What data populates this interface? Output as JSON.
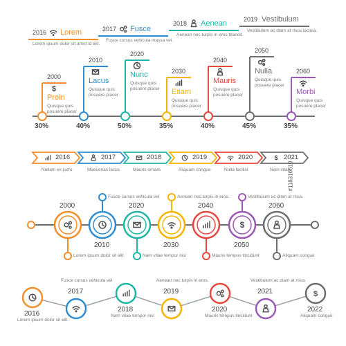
{
  "colors": {
    "orange": "#f28e2b",
    "blue": "#2f8ccf",
    "teal": "#1fb6a6",
    "yellow": "#f4b400",
    "red": "#e8473f",
    "gray": "#6d6d6d",
    "purple": "#9b59b6"
  },
  "row1": [
    {
      "year": "2016",
      "label": "Lorem",
      "icon": "wifi-icon",
      "desc": "Lorem ipsum dolor sit amet id elit.",
      "color": "#f28e2b"
    },
    {
      "year": "2017",
      "label": "Fusce",
      "icon": "gears-icon",
      "desc": "Fusce cursus vehicula massa vel.",
      "color": "#2f8ccf"
    },
    {
      "year": "2018",
      "label": "Aenean",
      "icon": "person-icon",
      "desc": "Aenean nec turpis in eros blandit.",
      "color": "#1fb6a6"
    },
    {
      "year": "2019",
      "label": "Vestibulum",
      "icon": "",
      "desc": "Vestibulum ac diam at risus lacinia.",
      "color": "#6d6d6d"
    }
  ],
  "row2": [
    {
      "year": "2000",
      "label": "Proin",
      "icon": "dollar-icon",
      "desc": "Quisque quis posuere placer",
      "pct": "30%",
      "color": "#f28e2b"
    },
    {
      "year": "2010",
      "label": "Lacus",
      "icon": "mail-icon",
      "desc": "Quisque quis posuere placer",
      "pct": "40%",
      "color": "#2f8ccf"
    },
    {
      "year": "2020",
      "label": "Nunc",
      "icon": "clock-icon",
      "desc": "Quisque quis posuere placer",
      "pct": "50%",
      "color": "#1fb6a6"
    },
    {
      "year": "2030",
      "label": "Etiam",
      "icon": "chart-icon",
      "desc": "Quisque quis posuere placer",
      "pct": "35%",
      "color": "#f4b400"
    },
    {
      "year": "2040",
      "label": "Mauris",
      "icon": "person-icon",
      "desc": "Quisque quis posuere placer",
      "pct": "40%",
      "color": "#e8473f"
    },
    {
      "year": "2050",
      "label": "Nulla",
      "icon": "gears-icon",
      "desc": "Quisque quis posuere placer",
      "pct": "45%",
      "color": "#6d6d6d"
    },
    {
      "year": "2060",
      "label": "Morbi",
      "icon": "wifi-icon",
      "desc": "Quisque quis posuere placer",
      "pct": "35%",
      "color": "#9b59b6"
    }
  ],
  "row3": [
    {
      "year": "2016",
      "icon": "chart-icon",
      "caption": "Nullam ex justo",
      "color": "#f28e2b"
    },
    {
      "year": "2017",
      "icon": "person-icon",
      "caption": "Maecenas lacus",
      "color": "#2f8ccf"
    },
    {
      "year": "2018",
      "icon": "mail-icon",
      "caption": "Mauris ornare",
      "color": "#1fb6a6"
    },
    {
      "year": "2019",
      "icon": "clock-icon",
      "caption": "Aliquam congue",
      "color": "#f4b400"
    },
    {
      "year": "2020",
      "icon": "wifi-icon",
      "caption": "Nulla facilisi",
      "color": "#e8473f"
    },
    {
      "year": "2021",
      "icon": "dollar-icon",
      "caption": "Nam vitae",
      "color": "#6d6d6d"
    }
  ],
  "row4": [
    {
      "year": "2000",
      "icon": "gears-icon",
      "note": "Lorem ipsum dolor sit elit.",
      "color": "#f28e2b"
    },
    {
      "year": "2010",
      "icon": "clock-icon",
      "note": "Fusce cursus vehicula vel",
      "color": "#2f8ccf"
    },
    {
      "year": "2020",
      "icon": "mail-icon",
      "note": "Nam vitae tempor nisi",
      "color": "#1fb6a6"
    },
    {
      "year": "2030",
      "icon": "wifi-icon",
      "note": "Aenean nec turpis in eros.",
      "color": "#f4b400"
    },
    {
      "year": "2040",
      "icon": "chart-icon",
      "note": "Mauris tempus tincidunt",
      "color": "#e8473f"
    },
    {
      "year": "2050",
      "icon": "dollar-icon",
      "note": "Vestibulum ac diam at risus",
      "color": "#9b59b6"
    },
    {
      "year": "2060",
      "icon": "person-icon",
      "note": "Aliquam congue",
      "color": "#6d6d6d"
    }
  ],
  "row5": [
    {
      "year": "2016",
      "icon": "clock-icon",
      "note": "Lorem ipsum dolor sit elit.",
      "color": "#f28e2b"
    },
    {
      "year": "2017",
      "icon": "wifi-icon",
      "note": "Fusce cursus vehicula vel",
      "color": "#2f8ccf"
    },
    {
      "year": "2018",
      "icon": "chart-icon",
      "note": "Nam vitae tempor nisi",
      "color": "#1fb6a6"
    },
    {
      "year": "2019",
      "icon": "mail-icon",
      "note": "Aenean nec turpis in eros.",
      "color": "#f4b400"
    },
    {
      "year": "2020",
      "icon": "gears-icon",
      "note": "Mauris tempus tincidunt",
      "color": "#e8473f"
    },
    {
      "year": "2021",
      "icon": "person-icon",
      "note": "Vestibulum ac diam at risus",
      "color": "#9b59b6"
    },
    {
      "year": "2022",
      "icon": "dollar-icon",
      "note": "Aliquam congue",
      "color": "#6d6d6d"
    }
  ],
  "watermark": "#118316610"
}
